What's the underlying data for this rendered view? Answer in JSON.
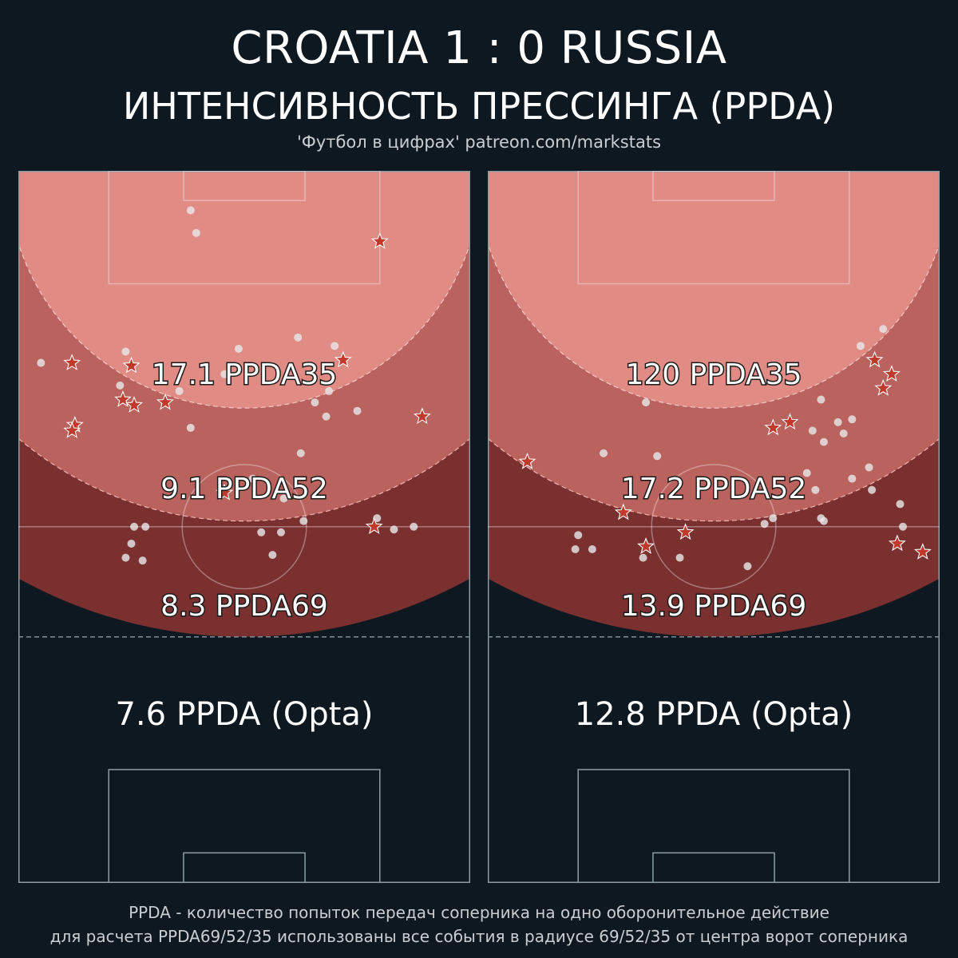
{
  "title": "CROATIA  1 : 0  RUSSIA",
  "subtitle": "ИНТЕНСИВНОСТЬ ПРЕССИНГА (PPDA)",
  "credit": "'Футбол в цифрах' patreon.com/markstats",
  "colors": {
    "background": "#0e1821",
    "zone35": "#e08c85",
    "zone52": "#b9625e",
    "zone69": "#7b3030",
    "star": "#c0392b",
    "dot": "#e6e6e6",
    "pitch_line": "#8e9da5"
  },
  "panels": [
    {
      "team": "Croatia",
      "ppda35": "17.1 PPDA35",
      "ppda52": "9.1 PPDA52",
      "ppda69": "8.3 PPDA69",
      "opta": "7.6 PPDA (Opta)",
      "dots": [
        [
          61,
          14
        ],
        [
          63,
          22
        ],
        [
          99,
          59
        ],
        [
          112,
          62
        ],
        [
          8,
          68
        ],
        [
          78,
          63
        ],
        [
          57,
          78
        ],
        [
          73,
          72
        ],
        [
          38,
          64
        ],
        [
          36,
          76
        ],
        [
          120,
          85
        ],
        [
          109,
          87
        ],
        [
          110,
          78
        ],
        [
          105,
          82
        ],
        [
          83,
          109
        ],
        [
          140,
          126
        ],
        [
          133,
          127
        ],
        [
          100,
          100
        ],
        [
          101,
          124
        ],
        [
          86,
          128
        ],
        [
          94,
          116
        ],
        [
          93,
          128
        ],
        [
          90,
          136
        ],
        [
          41,
          126
        ],
        [
          40,
          132
        ],
        [
          44,
          138
        ],
        [
          45,
          126
        ],
        [
          38,
          137
        ],
        [
          61,
          91
        ],
        [
          127,
          123
        ]
      ],
      "stars": [
        [
          128,
          25
        ],
        [
          19,
          68
        ],
        [
          115,
          67
        ],
        [
          40,
          69
        ],
        [
          37,
          81
        ],
        [
          52,
          82
        ],
        [
          41,
          83
        ],
        [
          143,
          87
        ],
        [
          20,
          90
        ],
        [
          19,
          92
        ],
        [
          73,
          114
        ],
        [
          126,
          126
        ]
      ]
    },
    {
      "team": "Russia",
      "ppda35": "120 PPDA35",
      "ppda52": "17.2 PPDA52",
      "ppda69": "13.9 PPDA69",
      "opta": "12.8 PPDA (Opta)",
      "dots": [
        [
          140,
          56
        ],
        [
          132,
          62
        ],
        [
          56,
          82
        ],
        [
          118,
          81
        ],
        [
          115,
          92
        ],
        [
          124,
          89
        ],
        [
          129,
          88
        ],
        [
          126,
          93
        ],
        [
          119,
          96
        ],
        [
          41,
          100
        ],
        [
          60,
          101
        ],
        [
          113,
          107
        ],
        [
          135,
          105
        ],
        [
          129,
          109
        ],
        [
          136,
          113
        ],
        [
          116,
          113
        ],
        [
          118,
          123
        ],
        [
          119,
          124
        ],
        [
          146,
          118
        ],
        [
          147,
          126
        ],
        [
          101,
          123
        ],
        [
          98,
          125
        ],
        [
          32,
          129
        ],
        [
          31,
          134
        ],
        [
          37,
          134
        ],
        [
          55,
          137
        ],
        [
          68,
          137
        ],
        [
          92,
          140
        ]
      ],
      "stars": [
        [
          137,
          67
        ],
        [
          143,
          72
        ],
        [
          140,
          77
        ],
        [
          101,
          91
        ],
        [
          107,
          89
        ],
        [
          14,
          103
        ],
        [
          48,
          121
        ],
        [
          56,
          133
        ],
        [
          70,
          128
        ],
        [
          145,
          132
        ],
        [
          154,
          135
        ]
      ]
    }
  ],
  "footnote": [
    "PPDA - количество попыток передач соперника на одно оборонительное действие",
    "для расчета PPDA69/52/35 использованы все события в радиусе 69/52/35 от центра ворот соперника"
  ]
}
